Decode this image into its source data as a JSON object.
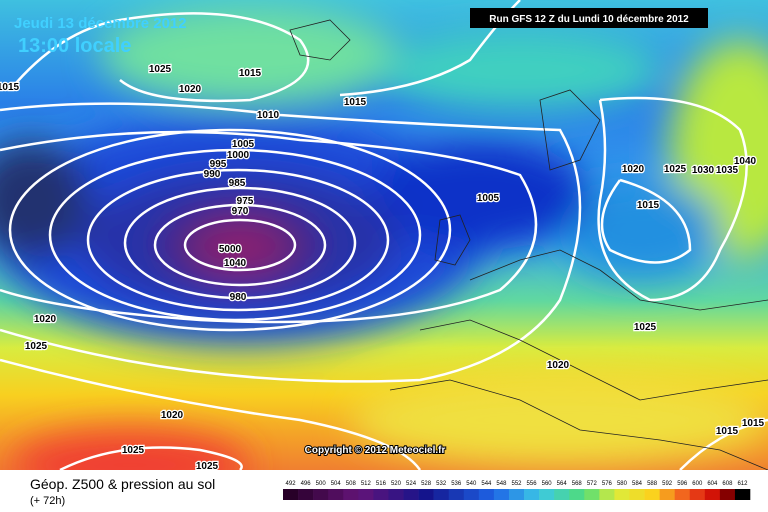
{
  "header": {
    "date": "Jeudi 13 décembre 2012",
    "time": "13:00 locale",
    "run": "Run GFS 12 Z du Lundi 10 décembre 2012"
  },
  "copyright": "Copyright © 2012 Meteociel.fr",
  "footer": {
    "title": "Géop. Z500 & pression au sol",
    "lead": "(+ 72h)"
  },
  "isobar_labels": [
    1015,
    1025,
    1015,
    1020,
    1015,
    1010,
    1005,
    1000,
    995,
    990,
    985,
    975,
    970,
    5000,
    1040,
    980,
    1005,
    1020,
    1025,
    1030,
    1035,
    1040,
    1015,
    1025,
    1020,
    1020,
    1025,
    1020,
    1025,
    1025,
    1015,
    1015
  ],
  "colorbar": {
    "ticks": [
      492,
      496,
      500,
      504,
      508,
      512,
      516,
      520,
      524,
      528,
      532,
      536,
      540,
      544,
      548,
      552,
      556,
      560,
      564,
      568,
      572,
      576,
      580,
      584,
      588,
      592,
      596,
      600,
      604,
      608,
      612
    ]
  }
}
